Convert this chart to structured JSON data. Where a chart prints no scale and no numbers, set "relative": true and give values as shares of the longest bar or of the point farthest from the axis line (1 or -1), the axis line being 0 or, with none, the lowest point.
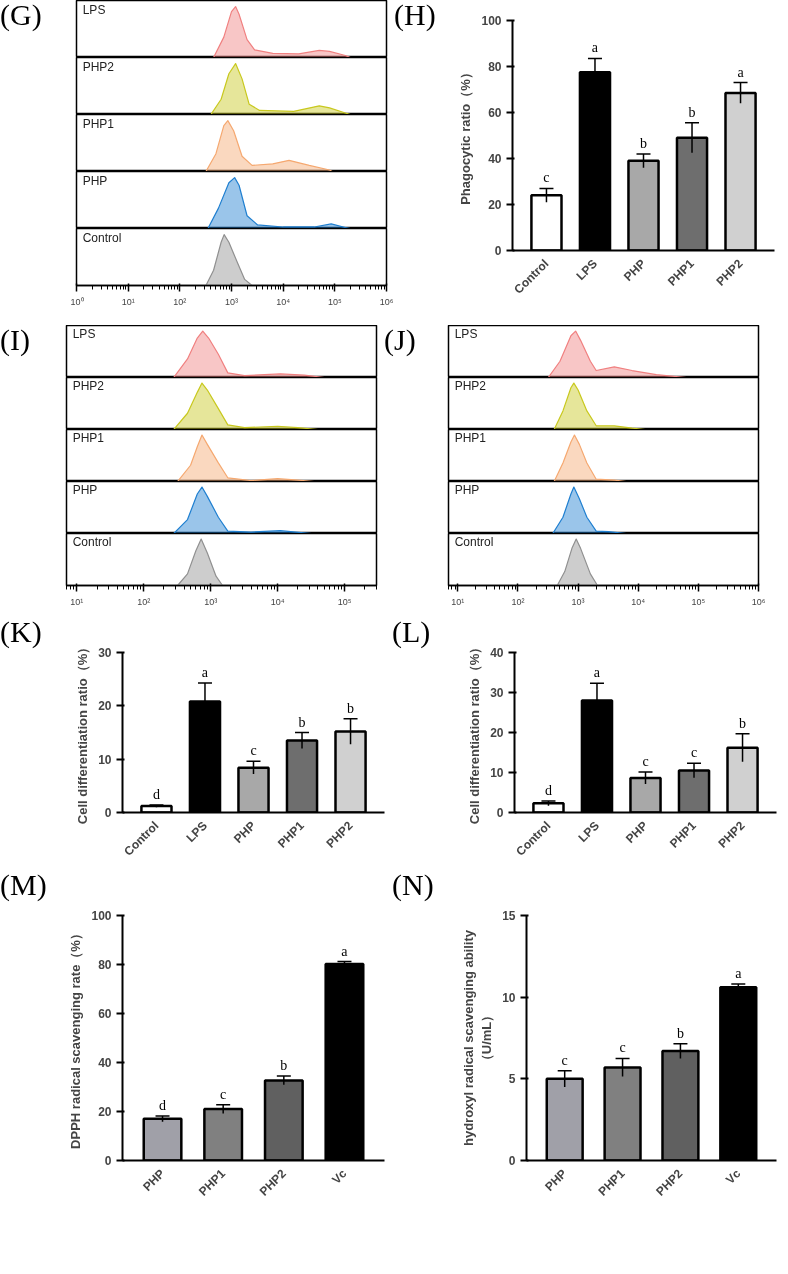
{
  "chart_data": [
    {
      "type": "area",
      "title": "(G)",
      "relative": true,
      "log": "x",
      "xlim": [
        1,
        1000000
      ],
      "tick_labels": false,
      "x": [
        450,
        710,
        1000,
        1200,
        1400,
        2000,
        2800,
        6300,
        20000,
        50000,
        79000,
        160000,
        200000
      ],
      "series": [
        {
          "name": "LPS",
          "color": "#f08080",
          "values": [
            0,
            0.4,
            0.9,
            1,
            0.85,
            0.35,
            0.15,
            0.08,
            0.07,
            0.14,
            0.12,
            0.04,
            0
          ]
        }
      ]
    },
    {
      "type": "area",
      "relative": true,
      "log": "x",
      "xlim": [
        1,
        1000000
      ],
      "tick_labels": false,
      "x": [
        400,
        630,
        890,
        1200,
        1600,
        2200,
        3500,
        16000,
        50000,
        79000,
        160000,
        200000
      ],
      "series": [
        {
          "name": "PHP2",
          "color": "#c8c81e",
          "values": [
            0,
            0.3,
            0.8,
            1,
            0.7,
            0.2,
            0.08,
            0.06,
            0.17,
            0.13,
            0.03,
            0
          ]
        }
      ]
    },
    {
      "type": "area",
      "relative": true,
      "log": "x",
      "xlim": [
        1,
        1000000
      ],
      "tick_labels": false,
      "x": [
        320,
        500,
        710,
        850,
        1100,
        1600,
        2500,
        6300,
        13000,
        32000,
        79000,
        89000
      ],
      "series": [
        {
          "name": "PHP1",
          "color": "#f5a870",
          "values": [
            0,
            0.35,
            0.9,
            1,
            0.8,
            0.3,
            0.12,
            0.15,
            0.22,
            0.12,
            0.03,
            0
          ]
        }
      ]
    },
    {
      "type": "area",
      "relative": true,
      "log": "x",
      "xlim": [
        1,
        1000000
      ],
      "tick_labels": false,
      "x": [
        350,
        560,
        890,
        1150,
        1400,
        2000,
        3200,
        10000,
        40000,
        85000,
        160000,
        200000
      ],
      "series": [
        {
          "name": "PHP",
          "color": "#1f7fd0",
          "values": [
            0,
            0.4,
            0.9,
            1,
            0.85,
            0.25,
            0.07,
            0.03,
            0.03,
            0.09,
            0.02,
            0
          ]
        }
      ]
    },
    {
      "type": "area",
      "relative": true,
      "log": "x",
      "xlim": [
        1,
        1000000
      ],
      "tick_labels": "x",
      "xticks": [
        {
          "value": 1,
          "label": "10⁰"
        },
        {
          "value": 10,
          "label": "10¹"
        },
        {
          "value": 100,
          "label": "10²"
        },
        {
          "value": 1000,
          "label": "10³"
        },
        {
          "value": 10000,
          "label": "10⁴"
        },
        {
          "value": 100000,
          "label": "10⁵"
        },
        {
          "value": 1000000,
          "label": "10⁶"
        }
      ],
      "x": [
        320,
        450,
        630,
        720,
        890,
        1300,
        1800,
        2500
      ],
      "series": [
        {
          "name": "Control",
          "color": "#909090",
          "values": [
            0,
            0.3,
            0.85,
            1,
            0.85,
            0.45,
            0.12,
            0
          ]
        }
      ]
    },
    {
      "type": "bar",
      "title": "(H)",
      "categories": [
        "Control",
        "LPS",
        "PHP",
        "PHP1",
        "PHP2"
      ],
      "values": [
        24,
        77.5,
        39,
        49,
        68.5
      ],
      "errors": [
        3,
        6,
        3,
        6.5,
        4.5
      ],
      "colors": [
        "#ffffff",
        "#000000",
        "#a8a8a8",
        "#6e6e6e",
        "#d0d0d0"
      ],
      "ylabel": "Phagocytic ratio（%）",
      "ylim": [
        0,
        100
      ],
      "yticks": [
        0,
        20,
        40,
        60,
        80,
        100
      ],
      "annotations": [
        {
          "text": "c",
          "x": "Control",
          "y": 27
        },
        {
          "text": "a",
          "x": "LPS",
          "y": 83.5
        },
        {
          "text": "b",
          "x": "PHP",
          "y": 42
        },
        {
          "text": "b",
          "x": "PHP1",
          "y": 55.5
        },
        {
          "text": "a",
          "x": "PHP2",
          "y": 73
        }
      ]
    },
    {
      "type": "area",
      "title": "(I)",
      "relative": true,
      "log": "x",
      "xlim": [
        7,
        300000
      ],
      "tick_labels": false,
      "x": [
        280,
        450,
        630,
        760,
        930,
        1300,
        1800,
        3200,
        11000,
        25000,
        50000
      ],
      "series": [
        {
          "name": "LPS",
          "color": "#f08080",
          "values": [
            0,
            0.4,
            0.85,
            1,
            0.85,
            0.5,
            0.1,
            0.04,
            0.08,
            0.05,
            0
          ]
        }
      ]
    },
    {
      "type": "area",
      "relative": true,
      "log": "x",
      "xlim": [
        7,
        300000
      ],
      "tick_labels": false,
      "x": [
        280,
        450,
        630,
        740,
        890,
        1300,
        1800,
        3200,
        10000,
        20000,
        40000
      ],
      "series": [
        {
          "name": "PHP2",
          "color": "#c8c81e",
          "values": [
            0,
            0.35,
            0.8,
            1,
            0.85,
            0.45,
            0.1,
            0.04,
            0.07,
            0.04,
            0
          ]
        }
      ]
    },
    {
      "type": "area",
      "relative": true,
      "log": "x",
      "xlim": [
        7,
        300000
      ],
      "tick_labels": false,
      "x": [
        320,
        500,
        630,
        740,
        890,
        1300,
        1800,
        4000,
        10000,
        20000,
        35000
      ],
      "series": [
        {
          "name": "PHP1",
          "color": "#f5a870",
          "values": [
            0,
            0.35,
            0.75,
            1,
            0.8,
            0.4,
            0.08,
            0.02,
            0.06,
            0.03,
            0
          ]
        }
      ]
    },
    {
      "type": "area",
      "relative": true,
      "log": "x",
      "xlim": [
        7,
        300000
      ],
      "tick_labels": false,
      "x": [
        280,
        450,
        630,
        740,
        890,
        1300,
        1800,
        4000,
        11000,
        32000
      ],
      "series": [
        {
          "name": "PHP",
          "color": "#1f7fd0",
          "values": [
            0,
            0.3,
            0.85,
            1,
            0.8,
            0.35,
            0.05,
            0.03,
            0.06,
            0
          ]
        }
      ]
    },
    {
      "type": "area",
      "relative": true,
      "log": "x",
      "xlim": [
        7,
        300000
      ],
      "tick_labels": "x",
      "xticks": [
        {
          "value": 10,
          "label": "10¹"
        },
        {
          "value": 100,
          "label": "10²"
        },
        {
          "value": 1000,
          "label": "10³"
        },
        {
          "value": 10000,
          "label": "10⁴"
        },
        {
          "value": 100000,
          "label": "10⁵"
        }
      ],
      "x": [
        320,
        450,
        600,
        720,
        890,
        1200,
        1500
      ],
      "series": [
        {
          "name": "Control",
          "color": "#909090",
          "values": [
            0,
            0.25,
            0.75,
            1,
            0.7,
            0.2,
            0
          ]
        }
      ]
    },
    {
      "type": "area",
      "title": "(J)",
      "relative": true,
      "log": "x",
      "xlim": [
        7,
        1000000
      ],
      "tick_labels": false,
      "x": [
        320,
        500,
        760,
        910,
        1100,
        1600,
        2000,
        4000,
        7900,
        20000,
        63000
      ],
      "series": [
        {
          "name": "LPS",
          "color": "#f08080",
          "values": [
            0,
            0.35,
            0.9,
            1,
            0.8,
            0.35,
            0.15,
            0.23,
            0.15,
            0.06,
            0
          ]
        }
      ]
    },
    {
      "type": "area",
      "relative": true,
      "log": "x",
      "xlim": [
        7,
        1000000
      ],
      "tick_labels": false,
      "x": [
        400,
        560,
        760,
        850,
        1000,
        1400,
        2000,
        4000,
        7900,
        13000
      ],
      "series": [
        {
          "name": "PHP2",
          "color": "#c8c81e",
          "values": [
            0,
            0.4,
            0.9,
            1,
            0.85,
            0.4,
            0.08,
            0.08,
            0.03,
            0
          ]
        }
      ]
    },
    {
      "type": "area",
      "relative": true,
      "log": "x",
      "xlim": [
        7,
        1000000
      ],
      "tick_labels": false,
      "x": [
        400,
        560,
        760,
        870,
        1050,
        1400,
        2000,
        4000,
        6300
      ],
      "series": [
        {
          "name": "PHP1",
          "color": "#f5a870",
          "values": [
            0,
            0.4,
            0.85,
            1,
            0.8,
            0.4,
            0.05,
            0.03,
            0
          ]
        }
      ]
    },
    {
      "type": "area",
      "relative": true,
      "log": "x",
      "xlim": [
        7,
        1000000
      ],
      "tick_labels": false,
      "x": [
        380,
        560,
        760,
        850,
        1050,
        1400,
        2000,
        3200,
        6300
      ],
      "series": [
        {
          "name": "PHP",
          "color": "#1f7fd0",
          "values": [
            0,
            0.35,
            0.85,
            1,
            0.75,
            0.35,
            0.05,
            0.04,
            0
          ]
        }
      ]
    },
    {
      "type": "area",
      "relative": true,
      "log": "x",
      "xlim": [
        7,
        1000000
      ],
      "tick_labels": "x",
      "xticks": [
        {
          "value": 10,
          "label": "10¹"
        },
        {
          "value": 100,
          "label": "10²"
        },
        {
          "value": 1000,
          "label": "10³"
        },
        {
          "value": 10000,
          "label": "10⁴"
        },
        {
          "value": 100000,
          "label": "10⁵"
        },
        {
          "value": 1000000,
          "label": "10⁶"
        }
      ],
      "x": [
        450,
        600,
        790,
        930,
        1100,
        1600,
        2100
      ],
      "series": [
        {
          "name": "Control",
          "color": "#909090",
          "values": [
            0,
            0.3,
            0.8,
            1,
            0.8,
            0.25,
            0
          ]
        }
      ]
    },
    {
      "type": "bar",
      "title": "(K)",
      "categories": [
        "Control",
        "LPS",
        "PHP",
        "PHP1",
        "PHP2"
      ],
      "values": [
        1.2,
        20.8,
        8.4,
        13.5,
        15.2
      ],
      "errors": [
        0.2,
        3.5,
        1.2,
        1.5,
        2.4
      ],
      "colors": [
        "#ffffff",
        "#000000",
        "#a8a8a8",
        "#6e6e6e",
        "#d0d0d0"
      ],
      "ylabel": "Cell differentiation ratio（%）",
      "ylim": [
        0,
        30
      ],
      "yticks": [
        0,
        10,
        20,
        30
      ],
      "annotations": [
        {
          "text": "d",
          "x": "Control",
          "y": 1.4
        },
        {
          "text": "a",
          "x": "LPS",
          "y": 24.3
        },
        {
          "text": "c",
          "x": "PHP",
          "y": 9.6
        },
        {
          "text": "b",
          "x": "PHP1",
          "y": 15
        },
        {
          "text": "b",
          "x": "PHP2",
          "y": 17.6
        }
      ]
    },
    {
      "type": "bar",
      "title": "(L)",
      "categories": [
        "Control",
        "LPS",
        "PHP",
        "PHP1",
        "PHP2"
      ],
      "values": [
        2.3,
        28,
        8.6,
        10.5,
        16.2
      ],
      "errors": [
        0.6,
        4.3,
        1.5,
        1.8,
        3.5
      ],
      "colors": [
        "#ffffff",
        "#000000",
        "#a8a8a8",
        "#6e6e6e",
        "#d0d0d0"
      ],
      "ylabel": "Cell differentiation ratio（%）",
      "ylim": [
        0,
        40
      ],
      "yticks": [
        0,
        10,
        20,
        30,
        40
      ],
      "annotations": [
        {
          "text": "d",
          "x": "Control",
          "y": 2.9
        },
        {
          "text": "a",
          "x": "LPS",
          "y": 32.3
        },
        {
          "text": "c",
          "x": "PHP",
          "y": 10.1
        },
        {
          "text": "c",
          "x": "PHP1",
          "y": 12.3
        },
        {
          "text": "b",
          "x": "PHP2",
          "y": 19.7
        }
      ]
    },
    {
      "type": "bar",
      "title": "(M)",
      "categories": [
        "PHP",
        "PHP1",
        "PHP2",
        "Vc"
      ],
      "values": [
        17,
        21,
        32.7,
        80.2
      ],
      "errors": [
        1.2,
        1.8,
        1.8,
        1
      ],
      "colors": [
        "#a0a0a8",
        "#808080",
        "#606060",
        "#000000"
      ],
      "ylabel": "DPPH radical scavenging rate（%）",
      "ylim": [
        0,
        100
      ],
      "yticks": [
        0,
        20,
        40,
        60,
        80,
        100
      ],
      "annotations": [
        {
          "text": "d",
          "x": "PHP",
          "y": 18.2
        },
        {
          "text": "c",
          "x": "PHP1",
          "y": 22.8
        },
        {
          "text": "b",
          "x": "PHP2",
          "y": 34.5
        },
        {
          "text": "a",
          "x": "Vc",
          "y": 81.2
        }
      ]
    },
    {
      "type": "bar",
      "title": "(N)",
      "categories": [
        "PHP",
        "PHP1",
        "PHP2",
        "Vc"
      ],
      "values": [
        5,
        5.7,
        6.7,
        10.6
      ],
      "errors": [
        0.5,
        0.55,
        0.45,
        0.2
      ],
      "colors": [
        "#a0a0a8",
        "#808080",
        "#606060",
        "#000000"
      ],
      "ylabel": "hydroxyl radical scavenging ability\n（U/mL）",
      "ylim": [
        0,
        15
      ],
      "yticks": [
        0,
        5,
        10,
        15
      ],
      "annotations": [
        {
          "text": "c",
          "x": "PHP",
          "y": 5.5
        },
        {
          "text": "c",
          "x": "PHP1",
          "y": 6.25
        },
        {
          "text": "b",
          "x": "PHP2",
          "y": 7.15
        },
        {
          "text": "a",
          "x": "Vc",
          "y": 10.8
        }
      ]
    }
  ]
}
